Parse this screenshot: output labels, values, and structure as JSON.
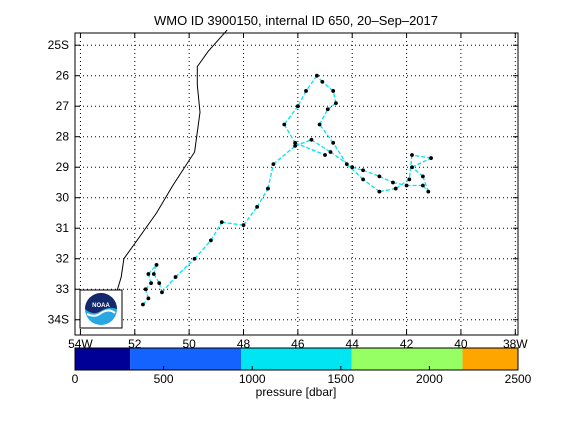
{
  "chart_data": {
    "type": "scatter",
    "title": "WMO ID 3900150, internal ID 650, 20–Sep–2017",
    "x_ticks": [
      {
        "lon": -54,
        "label": "54W"
      },
      {
        "lon": -52,
        "label": "52"
      },
      {
        "lon": -50,
        "label": "50"
      },
      {
        "lon": -48,
        "label": "48"
      },
      {
        "lon": -46,
        "label": "46"
      },
      {
        "lon": -44,
        "label": "44"
      },
      {
        "lon": -42,
        "label": "42"
      },
      {
        "lon": -40,
        "label": "40"
      },
      {
        "lon": -38,
        "label": "38W"
      }
    ],
    "y_ticks": [
      {
        "lat": -25,
        "label": "25S"
      },
      {
        "lat": -26,
        "label": "26"
      },
      {
        "lat": -27,
        "label": "27"
      },
      {
        "lat": -28,
        "label": "28"
      },
      {
        "lat": -29,
        "label": "29"
      },
      {
        "lat": -30,
        "label": "30"
      },
      {
        "lat": -31,
        "label": "31"
      },
      {
        "lat": -32,
        "label": "32"
      },
      {
        "lat": -33,
        "label": "33"
      },
      {
        "lat": -34,
        "label": "34S"
      }
    ],
    "xlim": [
      -54.2,
      -37.9
    ],
    "ylim": [
      -34.5,
      -24.6
    ],
    "grid": true,
    "coastline": [
      [
        -48.6,
        -24.5
      ],
      [
        -49.3,
        -25.2
      ],
      [
        -49.7,
        -25.7
      ],
      [
        -49.7,
        -26.3
      ],
      [
        -49.6,
        -27.2
      ],
      [
        -49.8,
        -28.5
      ],
      [
        -50.6,
        -29.6
      ],
      [
        -51.2,
        -30.5
      ],
      [
        -52.0,
        -31.5
      ],
      [
        -52.4,
        -32.0
      ],
      [
        -52.5,
        -32.6
      ],
      [
        -52.8,
        -33.5
      ],
      [
        -53.0,
        -33.9
      ]
    ],
    "track": [
      [
        -51.7,
        -33.5
      ],
      [
        -51.5,
        -33.3
      ],
      [
        -51.6,
        -33.0
      ],
      [
        -51.4,
        -32.8
      ],
      [
        -51.5,
        -32.5
      ],
      [
        -51.2,
        -32.2
      ],
      [
        -51.3,
        -32.5
      ],
      [
        -51.1,
        -32.8
      ],
      [
        -51.0,
        -33.1
      ],
      [
        -50.5,
        -32.6
      ],
      [
        -49.8,
        -32.0
      ],
      [
        -49.2,
        -31.4
      ],
      [
        -48.8,
        -30.8
      ],
      [
        -48.0,
        -30.9
      ],
      [
        -47.5,
        -30.3
      ],
      [
        -47.1,
        -29.7
      ],
      [
        -46.9,
        -28.9
      ],
      [
        -46.1,
        -28.3
      ],
      [
        -45.5,
        -28.1
      ],
      [
        -44.8,
        -28.5
      ],
      [
        -44.0,
        -29.0
      ],
      [
        -43.6,
        -29.1
      ],
      [
        -43.0,
        -29.3
      ],
      [
        -42.5,
        -29.5
      ],
      [
        -42.0,
        -29.6
      ],
      [
        -41.4,
        -29.6
      ],
      [
        -41.2,
        -29.8
      ],
      [
        -41.4,
        -29.3
      ],
      [
        -41.8,
        -29.0
      ],
      [
        -41.1,
        -28.7
      ],
      [
        -41.8,
        -28.6
      ],
      [
        -41.9,
        -29.4
      ],
      [
        -42.4,
        -29.7
      ],
      [
        -43.0,
        -29.8
      ],
      [
        -43.6,
        -29.4
      ],
      [
        -44.2,
        -28.9
      ],
      [
        -44.7,
        -28.2
      ],
      [
        -45.2,
        -27.6
      ],
      [
        -44.9,
        -27.1
      ],
      [
        -44.6,
        -26.9
      ],
      [
        -44.7,
        -26.5
      ],
      [
        -45.1,
        -26.2
      ],
      [
        -45.3,
        -26.0
      ],
      [
        -45.7,
        -26.5
      ],
      [
        -46.0,
        -27.0
      ],
      [
        -46.5,
        -27.6
      ],
      [
        -46.1,
        -28.2
      ],
      [
        -45.0,
        -28.6
      ]
    ],
    "colorbar": {
      "label": "pressure [dbar]",
      "range": [
        0,
        2500
      ],
      "ticks": [
        0,
        500,
        1000,
        1500,
        2000,
        2500
      ],
      "bands": [
        {
          "from": 0,
          "to": 312,
          "color": "#000096"
        },
        {
          "from": 312,
          "to": 937,
          "color": "#1463ff"
        },
        {
          "from": 937,
          "to": 1562,
          "color": "#00e5f2"
        },
        {
          "from": 1562,
          "to": 2187,
          "color": "#96ff64"
        },
        {
          "from": 2187,
          "to": 2500,
          "color": "#ffa500"
        }
      ]
    },
    "track_colors": {
      "segment": "#00e5f2",
      "point": "#000000",
      "coast": "#000000"
    }
  },
  "logo": {
    "text": "NOAA",
    "colors": {
      "top": "#14296c",
      "bottom": "#2aa7e0"
    }
  }
}
